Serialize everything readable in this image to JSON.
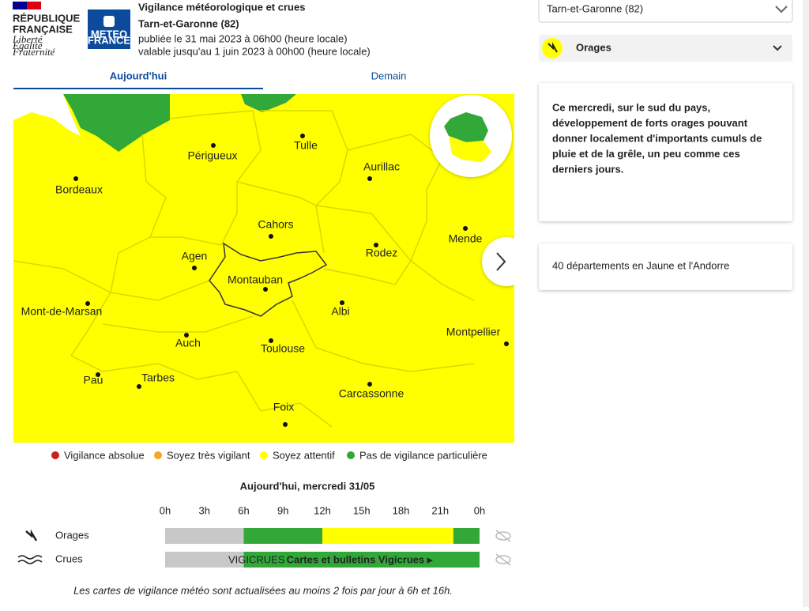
{
  "header": {
    "republic": [
      "RÉPUBLIQUE",
      "FRANÇAISE"
    ],
    "motto": [
      "Liberté",
      "Égalité",
      "Fraternité"
    ],
    "meteo": [
      "METEO",
      "FRANCE"
    ],
    "title": [
      "Vigilance météorologique et crues",
      "Tarn-et-Garonne (82)"
    ],
    "published": "publiée le 31 mai 2023 à 06h00 (heure locale)",
    "valid": "valable jusqu'au 1 juin 2023 à 00h00 (heure locale)"
  },
  "tabs": [
    "Aujourd'hui",
    "Demain"
  ],
  "map": {
    "cities": [
      "Tulle",
      "Périgueux",
      "Aurillac",
      "Bordeaux",
      "Cahors",
      "Mende",
      "Rodez",
      "Agen",
      "Montauban",
      "Mont-de-Marsan",
      "Albi",
      "Montpellier",
      "Auch",
      "Toulouse",
      "Pau",
      "Tarbes",
      "Carcassonne",
      "Foix"
    ]
  },
  "legend": [
    {
      "label": "Vigilance absolue",
      "color": "#cc1f1f"
    },
    {
      "label": "Soyez très vigilant",
      "color": "#f5a623"
    },
    {
      "label": "Soyez attentif",
      "color": "#ffff00"
    },
    {
      "label": "Pas de vigilance particulière",
      "color": "#31a838"
    }
  ],
  "timeline": {
    "date": "Aujourd'hui, mercredi 31/05",
    "xlim": [
      0,
      24
    ],
    "xticks": [
      {
        "value": 0,
        "label": "0h"
      },
      {
        "value": 3,
        "label": "3h"
      },
      {
        "value": 6,
        "label": "6h"
      },
      {
        "value": 9,
        "label": "9h"
      },
      {
        "value": 12,
        "label": "12h"
      },
      {
        "value": 15,
        "label": "15h"
      },
      {
        "value": 18,
        "label": "18h"
      },
      {
        "value": 21,
        "label": "21h"
      },
      {
        "value": 24,
        "label": "0h"
      }
    ],
    "rows": [
      {
        "name": "Orages",
        "segments": [
          {
            "from": 0,
            "to": 6,
            "color": "#c8c8c8"
          },
          {
            "from": 6,
            "to": 12,
            "color": "#31a838"
          },
          {
            "from": 12,
            "to": 22,
            "color": "#ffff00"
          },
          {
            "from": 22,
            "to": 24,
            "color": "#31a838"
          }
        ]
      },
      {
        "name": "Crues",
        "segments": [
          {
            "from": 0,
            "to": 6,
            "color": "#c8c8c8"
          },
          {
            "from": 6,
            "to": 24,
            "color": "#31a838"
          }
        ],
        "logo": "VIGICRUES",
        "link": "Cartes et bulletins Vigicrues ▸"
      }
    ]
  },
  "footnote": "Les cartes de vigilance météo sont actualisées au moins 2 fois par jour à 6h et 16h.",
  "sidebar": {
    "select": "Tarn-et-Garonne (82)",
    "phenomenon": "Orages",
    "text": [
      "Ce mercredi, sur le sud du pays,",
      "développement de forts orages pouvant",
      "donner localement d'importants cumuls de",
      "pluie et de la grêle, un peu comme ces",
      "derniers jours."
    ],
    "summary": "40 départements en Jaune et l'Andorre"
  }
}
